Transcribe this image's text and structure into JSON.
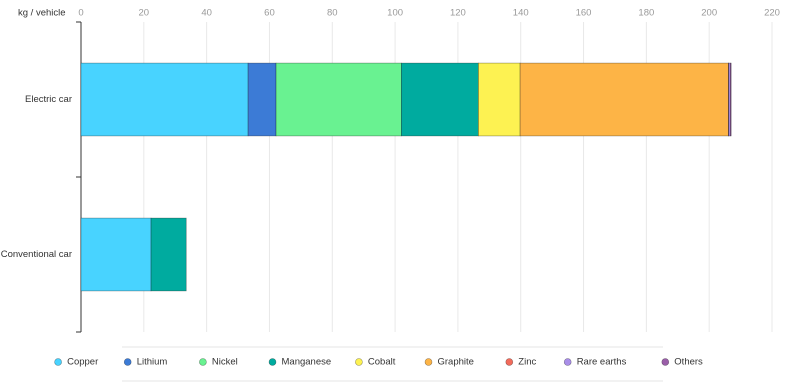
{
  "chart_data": {
    "type": "stacked-bar-horizontal",
    "axis_label": "kg / vehicle",
    "categories": [
      "Electric car",
      "Conventional car"
    ],
    "xlim": [
      0,
      220
    ],
    "xticks": [
      0,
      20,
      40,
      60,
      80,
      100,
      120,
      140,
      160,
      180,
      200,
      220
    ],
    "grid": true,
    "legend": "bottom",
    "series": [
      {
        "name": "Copper",
        "color": "#48d3ff",
        "values": [
          53.2,
          22.3
        ]
      },
      {
        "name": "Lithium",
        "color": "#3c7bd6",
        "values": [
          8.9,
          0
        ]
      },
      {
        "name": "Nickel",
        "color": "#69f291",
        "values": [
          39.9,
          0
        ]
      },
      {
        "name": "Manganese",
        "color": "#00ab9f",
        "values": [
          24.5,
          11.2
        ]
      },
      {
        "name": "Cobalt",
        "color": "#fdf252",
        "values": [
          13.3,
          0
        ]
      },
      {
        "name": "Graphite",
        "color": "#fdb446",
        "values": [
          66.3,
          0
        ]
      },
      {
        "name": "Zinc",
        "color": "#f26b5b",
        "values": [
          0.1,
          0
        ]
      },
      {
        "name": "Rare earths",
        "color": "#a98ee8",
        "values": [
          0.5,
          0
        ]
      },
      {
        "name": "Others",
        "color": "#9a5ea8",
        "values": [
          0.3,
          0
        ]
      }
    ]
  }
}
